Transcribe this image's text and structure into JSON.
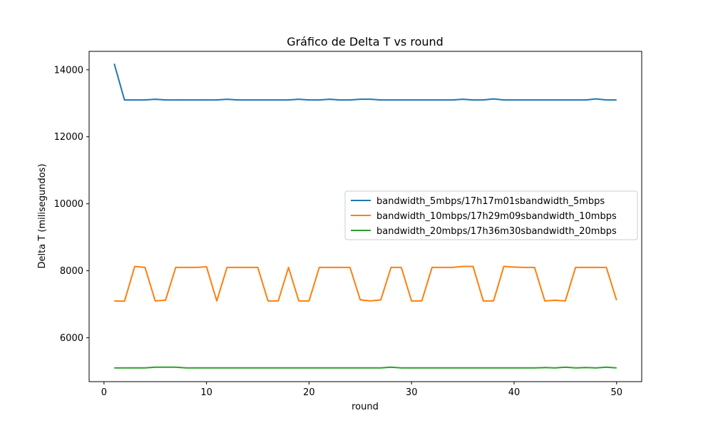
{
  "chart_data": {
    "type": "line",
    "title": "Gráfico de Delta T vs round",
    "xlabel": "round",
    "ylabel": "Delta T (milisegundos)",
    "xlim": [
      -1.45,
      52.45
    ],
    "ylim": [
      4690,
      14550
    ],
    "xticks": [
      0,
      10,
      20,
      30,
      40,
      50
    ],
    "yticks": [
      6000,
      8000,
      10000,
      12000,
      14000
    ],
    "grid": false,
    "legend_position": "center-right",
    "x": [
      1,
      2,
      3,
      4,
      5,
      6,
      7,
      8,
      9,
      10,
      11,
      12,
      13,
      14,
      15,
      16,
      17,
      18,
      19,
      20,
      21,
      22,
      23,
      24,
      25,
      26,
      27,
      28,
      29,
      30,
      31,
      32,
      33,
      34,
      35,
      36,
      37,
      38,
      39,
      40,
      41,
      42,
      43,
      44,
      45,
      46,
      47,
      48,
      49,
      50
    ],
    "series": [
      {
        "name": "bandwidth_5mbps/17h17m01sbandwidth_5mbps",
        "color": "#1f77b4",
        "values": [
          14180,
          13100,
          13100,
          13100,
          13120,
          13100,
          13100,
          13100,
          13100,
          13100,
          13100,
          13120,
          13100,
          13100,
          13100,
          13100,
          13100,
          13100,
          13120,
          13100,
          13100,
          13120,
          13100,
          13100,
          13120,
          13120,
          13100,
          13100,
          13100,
          13100,
          13100,
          13100,
          13100,
          13100,
          13120,
          13100,
          13100,
          13130,
          13100,
          13100,
          13100,
          13100,
          13100,
          13100,
          13100,
          13100,
          13100,
          13130,
          13100,
          13100
        ]
      },
      {
        "name": "bandwidth_10mbps/17h29m09sbandwidth_10mbps",
        "color": "#ff7f0e",
        "values": [
          7100,
          7090,
          8130,
          8100,
          7100,
          7120,
          8100,
          8100,
          8100,
          8120,
          7100,
          8100,
          8100,
          8100,
          8100,
          7100,
          7100,
          8100,
          7100,
          7100,
          8100,
          8100,
          8100,
          8100,
          7130,
          7100,
          7130,
          8100,
          8100,
          7100,
          7100,
          8100,
          8100,
          8100,
          8130,
          8130,
          7100,
          7100,
          8130,
          8110,
          8100,
          8100,
          7100,
          7120,
          7100,
          8100,
          8100,
          8100,
          8100,
          7120
        ]
      },
      {
        "name": "bandwidth_20mbps/17h36m30sbandwidth_20mbps",
        "color": "#2ca02c",
        "values": [
          5100,
          5100,
          5100,
          5100,
          5120,
          5120,
          5120,
          5100,
          5100,
          5100,
          5100,
          5100,
          5100,
          5100,
          5100,
          5100,
          5100,
          5100,
          5100,
          5100,
          5100,
          5100,
          5100,
          5100,
          5100,
          5100,
          5100,
          5120,
          5100,
          5100,
          5100,
          5100,
          5100,
          5100,
          5100,
          5100,
          5100,
          5100,
          5100,
          5100,
          5100,
          5100,
          5110,
          5100,
          5120,
          5100,
          5110,
          5100,
          5120,
          5100
        ]
      }
    ]
  }
}
